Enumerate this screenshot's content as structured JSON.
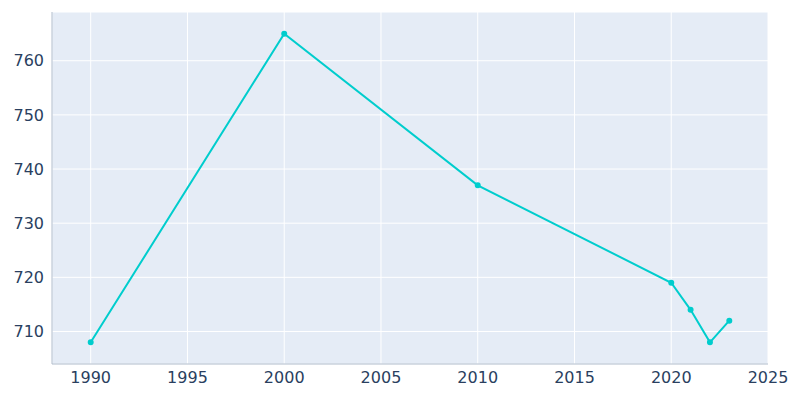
{
  "chart_data": {
    "type": "line",
    "x": [
      1990,
      2000,
      2010,
      2020,
      2021,
      2022,
      2023
    ],
    "values": [
      708,
      765,
      737,
      719,
      714,
      708,
      712
    ],
    "color": "#00cdcd",
    "marker": "circle",
    "xlim": [
      1988,
      2025
    ],
    "xticks": [
      1990,
      1995,
      2000,
      2005,
      2010,
      2015,
      2020,
      2025
    ],
    "ylim": [
      704,
      769
    ],
    "yticks": [
      710,
      720,
      730,
      740,
      750,
      760
    ],
    "grid": true
  }
}
